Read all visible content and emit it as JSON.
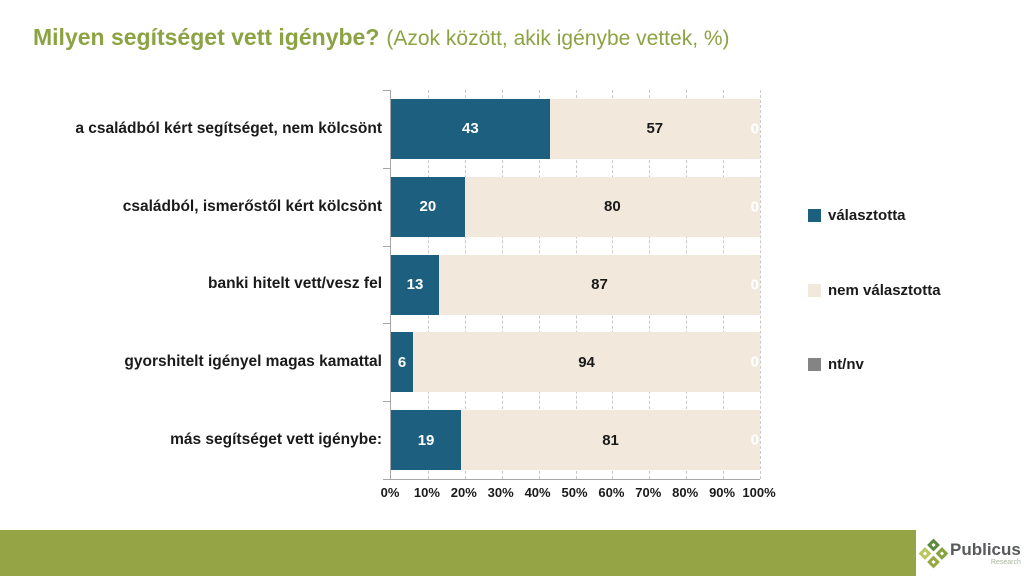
{
  "chart_data": {
    "type": "bar",
    "stacked": true,
    "orientation": "horizontal",
    "title": "Milyen segítséget vett igénybe?",
    "subtitle": "(Azok között, akik igénybe vettek, %)",
    "categories": [
      "a családból kért segítséget, nem kölcsönt",
      "családból, ismerőstől kért kölcsönt",
      "banki hitelt vett/vesz fel",
      "gyorshitelt igényel magas kamattal",
      "más segítséget vett igénybe:"
    ],
    "series": [
      {
        "name": "választotta",
        "color": "#1D5F7E",
        "values": [
          43,
          20,
          13,
          6,
          19
        ]
      },
      {
        "name": "nem választotta",
        "color": "#F2E8DC",
        "values": [
          57,
          80,
          87,
          94,
          81
        ]
      },
      {
        "name": "nt/nv",
        "color": "#848484",
        "values": [
          0,
          0,
          0,
          0,
          0
        ]
      }
    ],
    "x_ticks": [
      "0%",
      "10%",
      "20%",
      "30%",
      "40%",
      "50%",
      "60%",
      "70%",
      "80%",
      "90%",
      "100%"
    ],
    "xlim": [
      0,
      100
    ],
    "grid": "vertical-dashed",
    "legend_position": "right"
  },
  "colors": {
    "title_green": "#8CA344",
    "footer_green": "#95A545",
    "value_label_on_dark": "#FFFFFF",
    "value_label_on_light": "#1A1A1A"
  },
  "footer": {
    "brand": "Publicus",
    "brand_sub": "Research",
    "logo_colors": [
      "#5C8A3A",
      "#86A23E",
      "#BAC75F",
      "#96A83F"
    ]
  }
}
